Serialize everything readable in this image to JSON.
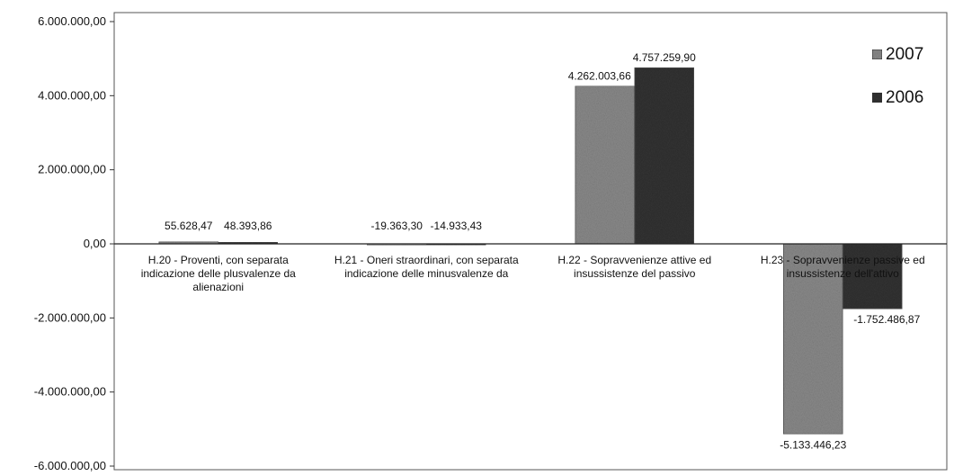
{
  "chart_data": {
    "type": "bar",
    "title": "",
    "xlabel": "",
    "ylabel": "",
    "ylim": [
      -6000000,
      6000000
    ],
    "yticks": [
      {
        "value": 6000000,
        "label": "6.000.000,00"
      },
      {
        "value": 4000000,
        "label": "4.000.000,00"
      },
      {
        "value": 2000000,
        "label": "2.000.000,00"
      },
      {
        "value": 0,
        "label": "0,00"
      },
      {
        "value": -2000000,
        "label": "-2.000.000,00"
      },
      {
        "value": -4000000,
        "label": "-4.000.000,00"
      },
      {
        "value": -6000000,
        "label": "-6.000.000,00"
      }
    ],
    "categories": [
      [
        "H.20 - Proventi, con separata",
        "indicazione delle plusvalenze da",
        "alienazioni"
      ],
      [
        "H.21 - Oneri straordinari, con separata",
        "indicazione delle minusvalenze da"
      ],
      [
        "H.22 - Sopravvenienze attive ed",
        "insussistenze del passivo"
      ],
      [
        "H.23 - Sopravvenienze passive ed",
        "insussistenze dell'attivo"
      ]
    ],
    "series": [
      {
        "name": "2007",
        "color": "#8a8a8a",
        "values": [
          55628.47,
          -19363.3,
          4262003.66,
          -5133446.23
        ],
        "labels": [
          "55.628,47",
          "-19.363,30",
          "4.262.003,66",
          "-5.133.446,23"
        ]
      },
      {
        "name": "2006",
        "color": "#333333",
        "values": [
          48393.86,
          -14933.43,
          4757259.9,
          -1752486.87
        ],
        "labels": [
          "48.393,86",
          "-14.933,43",
          "4.757.259,90",
          "-1.752.486,87"
        ]
      }
    ],
    "grid": false,
    "legend": "top-right"
  }
}
